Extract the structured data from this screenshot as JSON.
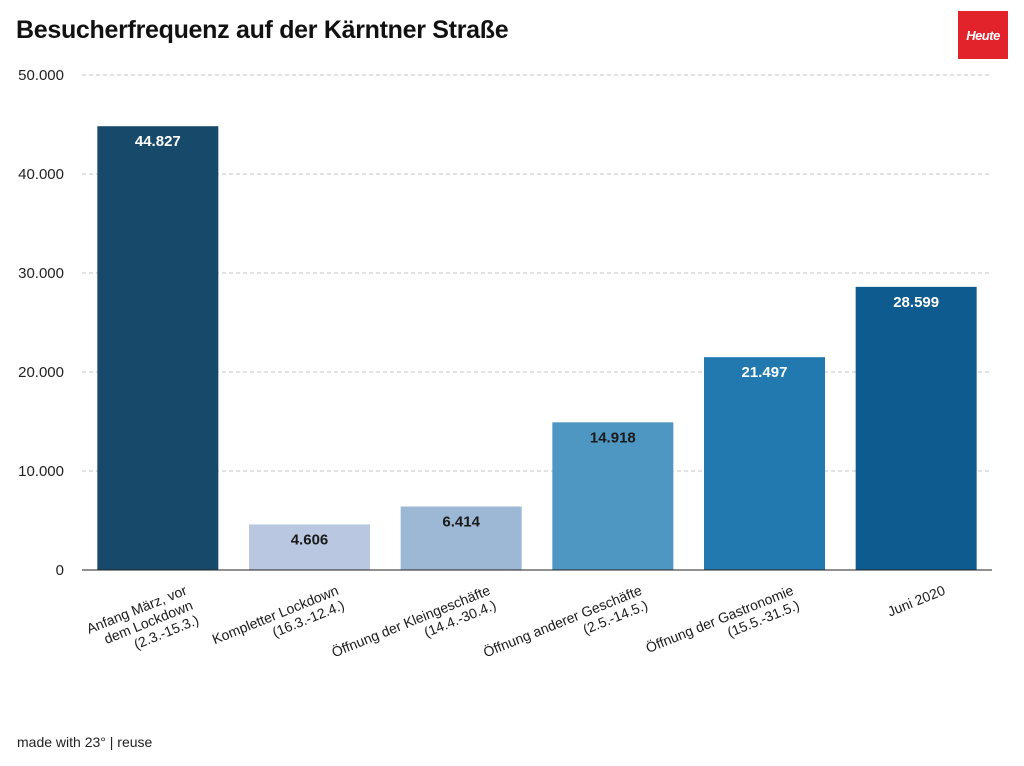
{
  "brand": {
    "logo_text": "Heute",
    "logo_color": "#e3232c"
  },
  "footer": {
    "text": "made with 23° | reuse"
  },
  "chart_data": {
    "type": "bar",
    "title": "Besucherfrequenz auf der Kärntner Straße",
    "xlabel": "",
    "ylabel": "",
    "ylim": [
      0,
      50000
    ],
    "y_ticks": [
      0,
      10000,
      20000,
      30000,
      40000,
      50000
    ],
    "y_tick_labels": [
      "0",
      "10.000",
      "20.000",
      "30.000",
      "40.000",
      "50.000"
    ],
    "grid": true,
    "categories": [
      [
        "Anfang März, vor",
        "dem Lockdown",
        "(2.3.-15.3.)"
      ],
      [
        "Kompletter Lockdown",
        "(16.3.-12.4.)"
      ],
      [
        "Öffnung der Kleingeschäfte",
        "(14.4.-30.4.)"
      ],
      [
        "Öffnung anderer Geschäfte",
        "(2.5.-14.5.)"
      ],
      [
        "Öffnung der Gastronomie",
        "(15.5.-31.5.)"
      ],
      [
        "Juni 2020"
      ]
    ],
    "values": [
      44827,
      4606,
      6414,
      14918,
      21497,
      28599
    ],
    "value_labels": [
      "44.827",
      "4.606",
      "6.414",
      "14.918",
      "21.497",
      "28.599"
    ],
    "bar_colors": [
      "#17496a",
      "#b9c7e0",
      "#9db8d5",
      "#4f97c3",
      "#2279b0",
      "#0e5c8f"
    ],
    "label_colors": [
      "#ffffff",
      "#1a1a1a",
      "#1a1a1a",
      "#1a1a1a",
      "#ffffff",
      "#ffffff"
    ]
  }
}
